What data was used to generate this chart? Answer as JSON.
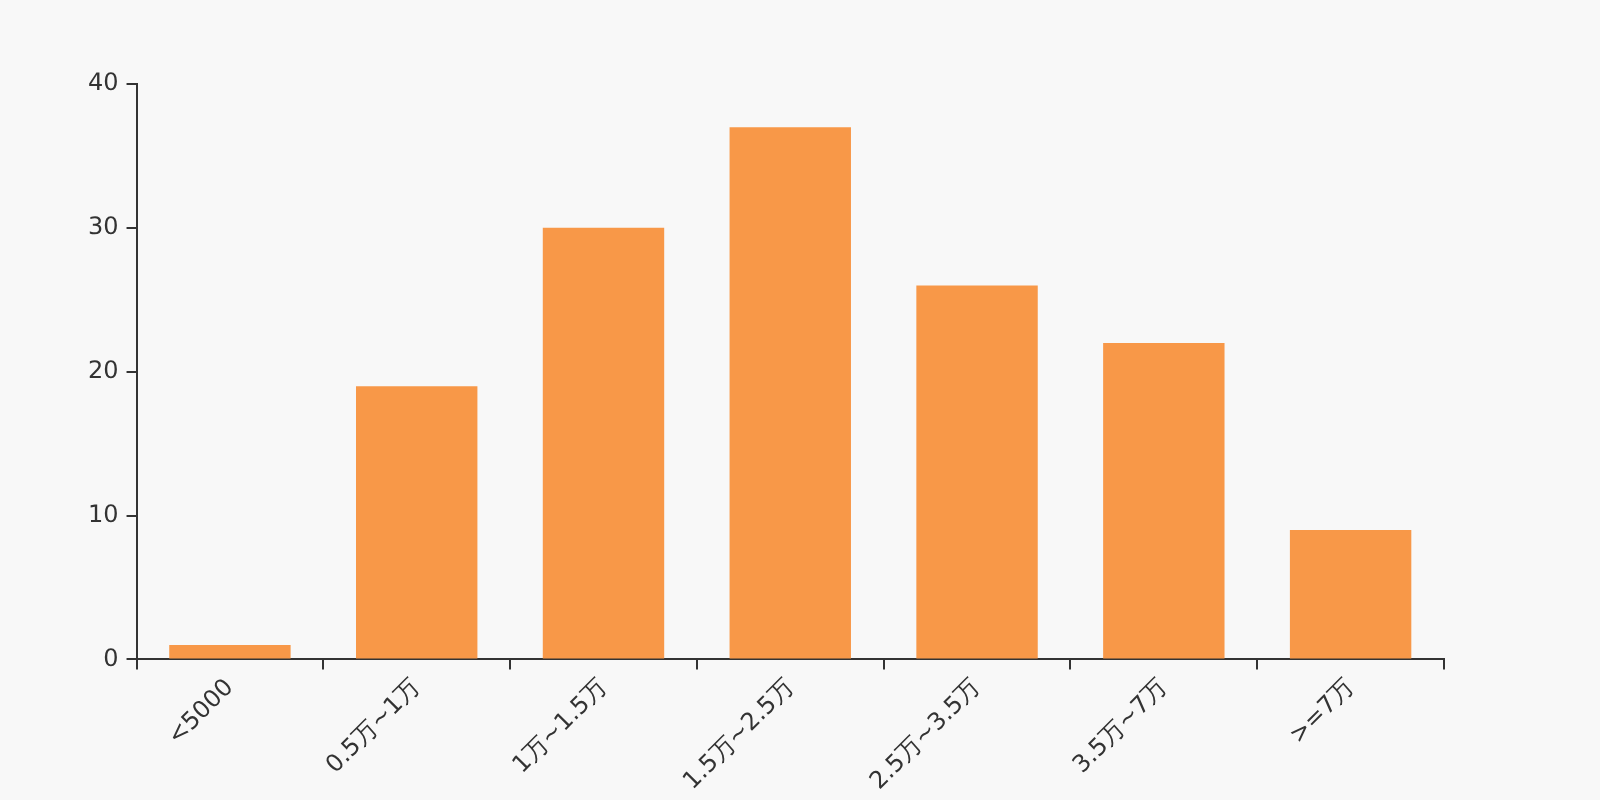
{
  "chart_data": {
    "type": "bar",
    "categories": [
      "<5000",
      "0.5万~1万",
      "1万~1.5万",
      "1.5万~2.5万",
      "2.5万~3.5万",
      "3.5万~7万",
      ">=7万"
    ],
    "values": [
      1,
      19,
      30,
      37,
      26,
      22,
      9
    ],
    "color": "#f89848",
    "ylim": [
      0,
      40
    ],
    "yticks": [
      0,
      10,
      20,
      30,
      40
    ],
    "grid": false,
    "legend": false
  }
}
